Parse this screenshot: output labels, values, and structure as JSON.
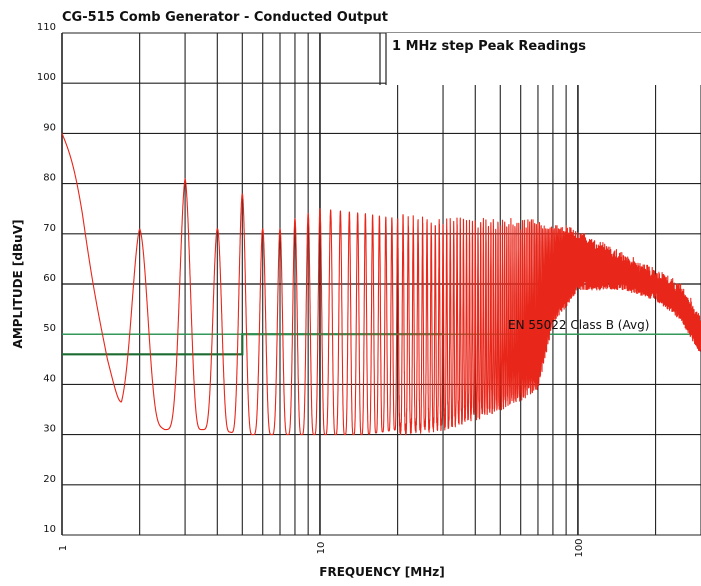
{
  "chart_data": {
    "type": "line",
    "title": "CG-515 Comb Generator - Conducted Output",
    "xlabel": "FREQUENCY [MHz]",
    "ylabel": "AMPLITUDE [dBuV]",
    "xscale": "log",
    "xlim": [
      1,
      300
    ],
    "ylim": [
      10,
      110
    ],
    "x_tick_labels": [
      {
        "value": 1,
        "label": "1"
      },
      {
        "value": 10,
        "label": "10"
      },
      {
        "value": 100,
        "label": "100"
      }
    ],
    "y_ticks": [
      10,
      20,
      30,
      40,
      50,
      60,
      70,
      80,
      90,
      100,
      110
    ],
    "grid": true,
    "annotations": {
      "box_label": "1 MHz step Peak Readings",
      "limit_label": "EN 55022 Class B (Avg)"
    },
    "series": [
      {
        "color": "#e8261a",
        "kind": "comb-response",
        "x": [
          1,
          1.2,
          1.5,
          1.7,
          2.0,
          2.5,
          3.0,
          3.5,
          4.0,
          5.0,
          6.0,
          7.0,
          8.0,
          10,
          15,
          20,
          30,
          40,
          50,
          60,
          70,
          80,
          100,
          150,
          200,
          250,
          300
        ],
        "peaks": [
          90,
          80,
          58,
          60,
          71,
          62,
          81,
          68,
          71,
          78,
          71,
          71,
          73,
          75,
          74,
          73,
          72,
          72,
          72,
          72,
          72,
          71,
          70,
          65,
          62,
          59,
          53
        ],
        "troughs": [
          90,
          70,
          45,
          34,
          34,
          31,
          31,
          31,
          31,
          30,
          30,
          30,
          30,
          30,
          30,
          31,
          32,
          34,
          36,
          38,
          40,
          53,
          60,
          60,
          58,
          54,
          47
        ]
      }
    ],
    "limit_lines": [
      {
        "color": "#1e6b32",
        "steps": [
          [
            1,
            46
          ],
          [
            5,
            46
          ],
          [
            5,
            50
          ],
          [
            30,
            50
          ]
        ]
      },
      {
        "color": "#2a9a55",
        "steps": [
          [
            1,
            50
          ],
          [
            300,
            50
          ]
        ]
      },
      {
        "color": "#111111",
        "steps": [
          [
            1,
            60
          ],
          [
            300,
            60
          ]
        ]
      }
    ],
    "colors": {
      "grid": "#222222",
      "background": "#ffffff",
      "trace": "#e8261a"
    }
  }
}
